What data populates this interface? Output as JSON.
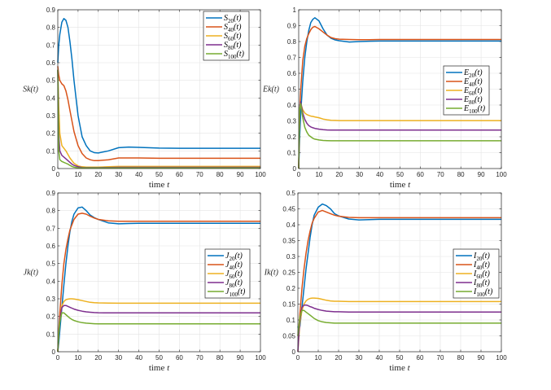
{
  "chart_data": [
    {
      "type": "line",
      "xlabel": "time t",
      "ylabel": "Sk(t)",
      "xlim": [
        0,
        100
      ],
      "ylim": [
        0,
        0.9
      ],
      "xticks": [
        0,
        10,
        20,
        30,
        40,
        50,
        60,
        70,
        80,
        90,
        100
      ],
      "yticks": [
        "0",
        "0.1",
        "0.2",
        "0.3",
        "0.4",
        "0.5",
        "0.6",
        "0.7",
        "0.8",
        "0.9"
      ],
      "grid": true,
      "legend_position": "top-right",
      "x": [
        0,
        0.5,
        1,
        2,
        3,
        4,
        5,
        6,
        7,
        8,
        10,
        12,
        14,
        16,
        18,
        20,
        25,
        30,
        35,
        40,
        50,
        60,
        80,
        100
      ],
      "series": [
        {
          "name": "S20(t)",
          "color": "#0072BD",
          "values": [
            0.6,
            0.7,
            0.76,
            0.83,
            0.85,
            0.84,
            0.8,
            0.72,
            0.62,
            0.5,
            0.3,
            0.18,
            0.13,
            0.1,
            0.09,
            0.088,
            0.1,
            0.118,
            0.122,
            0.12,
            0.116,
            0.115,
            0.115,
            0.115
          ]
        },
        {
          "name": "S40(t)",
          "color": "#D95319",
          "values": [
            0.58,
            0.53,
            0.5,
            0.48,
            0.47,
            0.44,
            0.39,
            0.33,
            0.27,
            0.21,
            0.13,
            0.085,
            0.06,
            0.05,
            0.045,
            0.045,
            0.05,
            0.06,
            0.06,
            0.06,
            0.058,
            0.058,
            0.058,
            0.058
          ]
        },
        {
          "name": "S60(t)",
          "color": "#EDB120",
          "values": [
            0.56,
            0.35,
            0.2,
            0.13,
            0.115,
            0.1,
            0.08,
            0.06,
            0.045,
            0.03,
            0.015,
            0.01,
            0.008,
            0.008,
            0.008,
            0.008,
            0.01,
            0.012,
            0.012,
            0.012,
            0.012,
            0.012,
            0.012,
            0.012
          ]
        },
        {
          "name": "S80(t)",
          "color": "#7E2F8E",
          "values": [
            0.56,
            0.2,
            0.1,
            0.075,
            0.065,
            0.055,
            0.045,
            0.035,
            0.025,
            0.018,
            0.01,
            0.006,
            0.005,
            0.005,
            0.005,
            0.005,
            0.006,
            0.007,
            0.007,
            0.007,
            0.007,
            0.007,
            0.007,
            0.007
          ]
        },
        {
          "name": "S100(t)",
          "color": "#77AC30",
          "values": [
            0.56,
            0.1,
            0.05,
            0.04,
            0.035,
            0.03,
            0.025,
            0.018,
            0.012,
            0.008,
            0.004,
            0.003,
            0.003,
            0.003,
            0.003,
            0.003,
            0.003,
            0.003,
            0.003,
            0.003,
            0.003,
            0.003,
            0.003,
            0.003
          ]
        }
      ]
    },
    {
      "type": "line",
      "xlabel": "time t",
      "ylabel": "Ek(t)",
      "xlim": [
        0,
        100
      ],
      "ylim": [
        0,
        1
      ],
      "xticks": [
        0,
        10,
        20,
        30,
        40,
        50,
        60,
        70,
        80,
        90,
        100
      ],
      "yticks": [
        "0",
        "0.1",
        "0.2",
        "0.3",
        "0.4",
        "0.5",
        "0.6",
        "0.7",
        "0.8",
        "0.9",
        "1"
      ],
      "grid": true,
      "legend_position": "right",
      "x": [
        0,
        0.5,
        1,
        2,
        3,
        4,
        5,
        6,
        7,
        8,
        10,
        12,
        14,
        16,
        18,
        20,
        25,
        30,
        35,
        40,
        50,
        60,
        80,
        100
      ],
      "series": [
        {
          "name": "E20(t)",
          "color": "#0072BD",
          "values": [
            0,
            0.2,
            0.35,
            0.55,
            0.7,
            0.8,
            0.87,
            0.92,
            0.94,
            0.95,
            0.93,
            0.88,
            0.84,
            0.82,
            0.81,
            0.805,
            0.797,
            0.8,
            0.802,
            0.803,
            0.803,
            0.803,
            0.803,
            0.803
          ]
        },
        {
          "name": "E40(t)",
          "color": "#D95319",
          "values": [
            0,
            0.35,
            0.5,
            0.68,
            0.77,
            0.82,
            0.85,
            0.875,
            0.89,
            0.895,
            0.88,
            0.86,
            0.84,
            0.825,
            0.818,
            0.815,
            0.813,
            0.812,
            0.812,
            0.813,
            0.813,
            0.813,
            0.813,
            0.813
          ]
        },
        {
          "name": "E60(t)",
          "color": "#EDB120",
          "values": [
            0,
            0.38,
            0.41,
            0.37,
            0.35,
            0.34,
            0.335,
            0.33,
            0.328,
            0.325,
            0.32,
            0.312,
            0.307,
            0.304,
            0.303,
            0.302,
            0.302,
            0.302,
            0.302,
            0.302,
            0.302,
            0.302,
            0.302,
            0.302
          ]
        },
        {
          "name": "E80(t)",
          "color": "#7E2F8E",
          "values": [
            0,
            0.38,
            0.42,
            0.35,
            0.31,
            0.285,
            0.27,
            0.262,
            0.257,
            0.253,
            0.248,
            0.245,
            0.243,
            0.242,
            0.242,
            0.242,
            0.242,
            0.242,
            0.242,
            0.242,
            0.242,
            0.242,
            0.242,
            0.242
          ]
        },
        {
          "name": "E100(t)",
          "color": "#77AC30",
          "values": [
            0,
            0.38,
            0.41,
            0.32,
            0.26,
            0.23,
            0.21,
            0.2,
            0.19,
            0.185,
            0.18,
            0.177,
            0.176,
            0.175,
            0.175,
            0.175,
            0.175,
            0.175,
            0.175,
            0.175,
            0.175,
            0.175,
            0.175,
            0.175
          ]
        }
      ]
    },
    {
      "type": "line",
      "xlabel": "time t",
      "ylabel": "Jk(t)",
      "xlim": [
        0,
        100
      ],
      "ylim": [
        0,
        0.9
      ],
      "xticks": [
        0,
        10,
        20,
        30,
        40,
        50,
        60,
        70,
        80,
        90,
        100
      ],
      "yticks": [
        "0",
        "0.1",
        "0.2",
        "0.3",
        "0.4",
        "0.5",
        "0.6",
        "0.7",
        "0.8",
        "0.9"
      ],
      "grid": true,
      "legend_position": "right",
      "x": [
        0,
        0.5,
        1,
        2,
        3,
        4,
        5,
        6,
        7,
        8,
        10,
        12,
        14,
        16,
        18,
        20,
        25,
        30,
        35,
        40,
        50,
        60,
        80,
        100
      ],
      "series": [
        {
          "name": "J20(t)",
          "color": "#0072BD",
          "values": [
            0,
            0.05,
            0.12,
            0.25,
            0.38,
            0.5,
            0.6,
            0.68,
            0.74,
            0.78,
            0.815,
            0.82,
            0.8,
            0.775,
            0.76,
            0.75,
            0.73,
            0.725,
            0.727,
            0.728,
            0.728,
            0.728,
            0.728,
            0.728
          ]
        },
        {
          "name": "J40(t)",
          "color": "#D95319",
          "values": [
            0,
            0.12,
            0.22,
            0.38,
            0.5,
            0.58,
            0.64,
            0.69,
            0.72,
            0.75,
            0.78,
            0.785,
            0.78,
            0.768,
            0.758,
            0.75,
            0.742,
            0.74,
            0.74,
            0.74,
            0.74,
            0.74,
            0.74,
            0.74
          ]
        },
        {
          "name": "J60(t)",
          "color": "#EDB120",
          "values": [
            0,
            0.1,
            0.18,
            0.26,
            0.285,
            0.295,
            0.298,
            0.3,
            0.3,
            0.299,
            0.295,
            0.29,
            0.285,
            0.28,
            0.278,
            0.277,
            0.276,
            0.275,
            0.275,
            0.275,
            0.275,
            0.275,
            0.275,
            0.275
          ]
        },
        {
          "name": "J80(t)",
          "color": "#7E2F8E",
          "values": [
            0,
            0.1,
            0.18,
            0.25,
            0.262,
            0.262,
            0.257,
            0.252,
            0.247,
            0.242,
            0.235,
            0.23,
            0.226,
            0.224,
            0.222,
            0.221,
            0.22,
            0.22,
            0.22,
            0.22,
            0.22,
            0.22,
            0.22,
            0.22
          ]
        },
        {
          "name": "J100(t)",
          "color": "#77AC30",
          "values": [
            0,
            0.1,
            0.17,
            0.22,
            0.22,
            0.21,
            0.2,
            0.19,
            0.183,
            0.177,
            0.17,
            0.165,
            0.162,
            0.16,
            0.159,
            0.158,
            0.158,
            0.158,
            0.158,
            0.158,
            0.158,
            0.158,
            0.158,
            0.158
          ]
        }
      ]
    },
    {
      "type": "line",
      "xlabel": "time t",
      "ylabel": "Ik(t)",
      "xlim": [
        0,
        100
      ],
      "ylim": [
        0,
        0.5
      ],
      "xticks": [
        0,
        10,
        20,
        30,
        40,
        50,
        60,
        70,
        80,
        90,
        100
      ],
      "yticks": [
        "0",
        "0.05",
        "0.1",
        "0.15",
        "0.2",
        "0.25",
        "0.3",
        "0.35",
        "0.4",
        "0.45",
        "0.5"
      ],
      "grid": true,
      "legend_position": "right",
      "x": [
        0,
        0.5,
        1,
        2,
        3,
        4,
        5,
        6,
        7,
        8,
        10,
        12,
        14,
        16,
        18,
        20,
        25,
        30,
        35,
        40,
        50,
        60,
        80,
        100
      ],
      "series": [
        {
          "name": "I20(t)",
          "color": "#0072BD",
          "values": [
            0.08,
            0.07,
            0.08,
            0.14,
            0.2,
            0.26,
            0.31,
            0.36,
            0.4,
            0.43,
            0.455,
            0.465,
            0.46,
            0.45,
            0.435,
            0.428,
            0.418,
            0.415,
            0.416,
            0.417,
            0.417,
            0.417,
            0.417,
            0.417
          ]
        },
        {
          "name": "I40(t)",
          "color": "#D95319",
          "values": [
            0.05,
            0.08,
            0.12,
            0.2,
            0.26,
            0.31,
            0.35,
            0.38,
            0.405,
            0.42,
            0.44,
            0.445,
            0.44,
            0.435,
            0.43,
            0.427,
            0.423,
            0.422,
            0.422,
            0.422,
            0.422,
            0.422,
            0.422,
            0.422
          ]
        },
        {
          "name": "I60(t)",
          "color": "#EDB120",
          "values": [
            0,
            0.05,
            0.09,
            0.13,
            0.15,
            0.16,
            0.165,
            0.168,
            0.169,
            0.169,
            0.168,
            0.165,
            0.162,
            0.16,
            0.159,
            0.159,
            0.158,
            0.158,
            0.158,
            0.158,
            0.158,
            0.158,
            0.158,
            0.158
          ]
        },
        {
          "name": "I80(t)",
          "color": "#7E2F8E",
          "values": [
            0,
            0.06,
            0.1,
            0.14,
            0.147,
            0.147,
            0.145,
            0.142,
            0.14,
            0.137,
            0.133,
            0.13,
            0.128,
            0.127,
            0.126,
            0.126,
            0.125,
            0.125,
            0.125,
            0.125,
            0.125,
            0.125,
            0.125,
            0.125
          ]
        },
        {
          "name": "I100(t)",
          "color": "#77AC30",
          "values": [
            0.05,
            0.08,
            0.11,
            0.13,
            0.13,
            0.125,
            0.12,
            0.115,
            0.11,
            0.105,
            0.098,
            0.094,
            0.092,
            0.091,
            0.09,
            0.09,
            0.09,
            0.09,
            0.09,
            0.09,
            0.09,
            0.09,
            0.09,
            0.09
          ]
        }
      ]
    }
  ]
}
